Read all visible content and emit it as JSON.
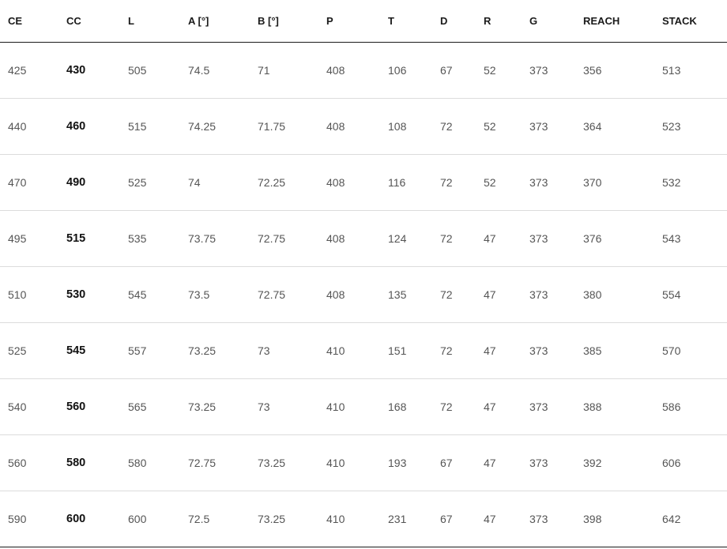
{
  "table": {
    "headers": [
      "CE",
      "CC",
      "L",
      "A [°]",
      "B [°]",
      "P",
      "T",
      "D",
      "R",
      "G",
      "REACH",
      "STACK"
    ],
    "rows": [
      [
        "425",
        "430",
        "505",
        "74.5",
        "71",
        "408",
        "106",
        "67",
        "52",
        "373",
        "356",
        "513"
      ],
      [
        "440",
        "460",
        "515",
        "74.25",
        "71.75",
        "408",
        "108",
        "72",
        "52",
        "373",
        "364",
        "523"
      ],
      [
        "470",
        "490",
        "525",
        "74",
        "72.25",
        "408",
        "116",
        "72",
        "52",
        "373",
        "370",
        "532"
      ],
      [
        "495",
        "515",
        "535",
        "73.75",
        "72.75",
        "408",
        "124",
        "72",
        "47",
        "373",
        "376",
        "543"
      ],
      [
        "510",
        "530",
        "545",
        "73.5",
        "72.75",
        "408",
        "135",
        "72",
        "47",
        "373",
        "380",
        "554"
      ],
      [
        "525",
        "545",
        "557",
        "73.25",
        "73",
        "410",
        "151",
        "72",
        "47",
        "373",
        "385",
        "570"
      ],
      [
        "540",
        "560",
        "565",
        "73.25",
        "73",
        "410",
        "168",
        "72",
        "47",
        "373",
        "388",
        "586"
      ],
      [
        "560",
        "580",
        "580",
        "72.75",
        "73.25",
        "410",
        "193",
        "67",
        "47",
        "373",
        "392",
        "606"
      ],
      [
        "590",
        "600",
        "600",
        "72.5",
        "73.25",
        "410",
        "231",
        "67",
        "47",
        "373",
        "398",
        "642"
      ]
    ]
  }
}
